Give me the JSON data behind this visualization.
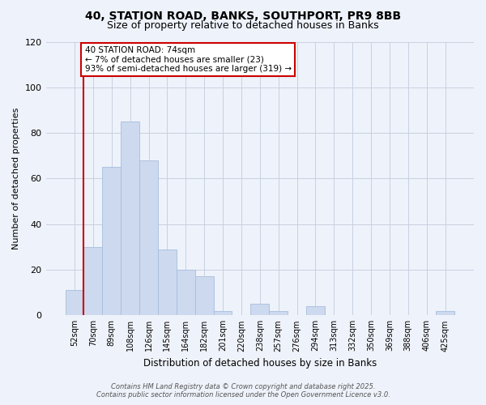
{
  "title1": "40, STATION ROAD, BANKS, SOUTHPORT, PR9 8BB",
  "title2": "Size of property relative to detached houses in Banks",
  "xlabel": "Distribution of detached houses by size in Banks",
  "ylabel": "Number of detached properties",
  "bar_color": "#ccd9ee",
  "bar_edge_color": "#a8bedd",
  "categories": [
    "52sqm",
    "70sqm",
    "89sqm",
    "108sqm",
    "126sqm",
    "145sqm",
    "164sqm",
    "182sqm",
    "201sqm",
    "220sqm",
    "238sqm",
    "257sqm",
    "276sqm",
    "294sqm",
    "313sqm",
    "332sqm",
    "350sqm",
    "369sqm",
    "388sqm",
    "406sqm",
    "425sqm"
  ],
  "values": [
    11,
    30,
    65,
    85,
    68,
    29,
    20,
    17,
    2,
    0,
    5,
    2,
    0,
    4,
    0,
    0,
    0,
    0,
    0,
    0,
    2
  ],
  "ylim": [
    0,
    120
  ],
  "yticks": [
    0,
    20,
    40,
    60,
    80,
    100,
    120
  ],
  "marker_bar_index": 1,
  "marker_color": "#cc0000",
  "annotation_line1": "40 STATION ROAD: 74sqm",
  "annotation_line2": "← 7% of detached houses are smaller (23)",
  "annotation_line3": "93% of semi-detached houses are larger (319) →",
  "annotation_box_color": "#ffffff",
  "annotation_box_edge": "#cc0000",
  "footer1": "Contains HM Land Registry data © Crown copyright and database right 2025.",
  "footer2": "Contains public sector information licensed under the Open Government Licence v3.0.",
  "bg_color": "#eef2fa"
}
